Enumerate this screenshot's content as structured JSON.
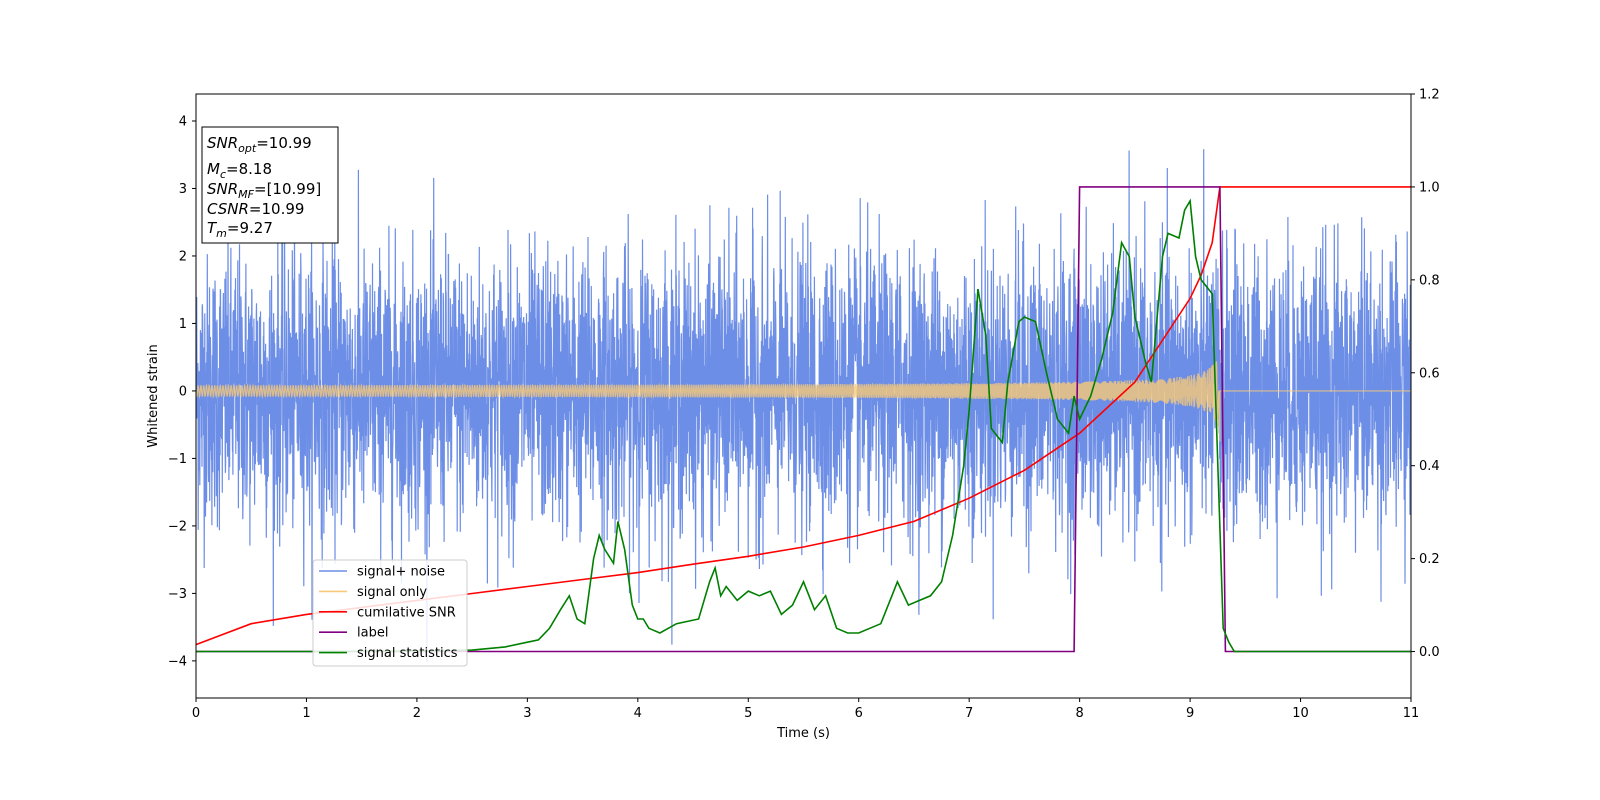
{
  "chart_data": {
    "type": "line",
    "title": "",
    "xlabel": "Time (s)",
    "ylabel": "Whitened strain",
    "xlim": [
      0,
      11
    ],
    "ylim_left": [
      -4.55,
      4.4
    ],
    "ylim_right": [
      -0.1,
      1.2
    ],
    "x_ticks": [
      0,
      1,
      2,
      3,
      4,
      5,
      6,
      7,
      8,
      9,
      10,
      11
    ],
    "y_ticks_left": [
      -4,
      -3,
      -2,
      -1,
      0,
      1,
      2,
      3,
      4
    ],
    "y_ticks_right": [
      "0.0",
      "0.2",
      "0.4",
      "0.6",
      "0.8",
      "1.0",
      "1.2"
    ],
    "grid": false,
    "legend": {
      "placement": "lower-left",
      "entries": [
        {
          "label": "signal+ noise",
          "color": "#6d8ee6"
        },
        {
          "label": "signal only",
          "color": "#f7c978"
        },
        {
          "label": "cumilative SNR",
          "color": "#ff0000"
        },
        {
          "label": "label",
          "color": "#800080"
        },
        {
          "label": "signal statistics",
          "color": "#008000"
        }
      ]
    },
    "annotation": {
      "placement": "top-left",
      "lines": [
        {
          "sym": "SNR",
          "sub": "opt",
          "value": "=10.99"
        },
        {
          "sym": "M",
          "sub": "c",
          "value": "=8.18"
        },
        {
          "sym": "SNR",
          "sub": "MF",
          "value": "=[10.99]"
        },
        {
          "sym": "CSNR",
          "sub": "",
          "value": "=10.99"
        },
        {
          "sym": "T",
          "sub": "m",
          "value": "=9.27"
        }
      ]
    },
    "signal_noise": {
      "axis": "left",
      "color": "#6d8ee6",
      "t_start": 0,
      "t_end": 11,
      "envelope_sigma": 1.0,
      "peak_max": 4.0,
      "peak_min": -4.15
    },
    "signal_only": {
      "axis": "left",
      "color": "#f7c978",
      "t_start": 0,
      "t_merge": 9.27,
      "amplitude_start": 0.05,
      "amplitude_end": 0.75
    },
    "cumulative_snr": {
      "axis": "right",
      "color": "#ff0000",
      "x": [
        0,
        0.5,
        1,
        1.5,
        2,
        2.5,
        3,
        3.5,
        4,
        4.5,
        5,
        5.5,
        6,
        6.5,
        7,
        7.5,
        8,
        8.5,
        9,
        9.1,
        9.2,
        9.27,
        11
      ],
      "y": [
        0.015,
        0.06,
        0.08,
        0.095,
        0.11,
        0.125,
        0.14,
        0.155,
        0.17,
        0.188,
        0.205,
        0.225,
        0.25,
        0.28,
        0.33,
        0.39,
        0.47,
        0.58,
        0.76,
        0.81,
        0.88,
        1.0,
        1.0
      ]
    },
    "label_series": {
      "axis": "right",
      "color": "#800080",
      "x": [
        0,
        7.95,
        8.0,
        9.27,
        9.32,
        11
      ],
      "y": [
        0,
        0,
        1,
        1,
        0,
        0
      ]
    },
    "signal_statistics": {
      "axis": "right",
      "color": "#008000",
      "x": [
        0,
        1,
        2,
        2.5,
        2.8,
        3.0,
        3.1,
        3.2,
        3.3,
        3.38,
        3.45,
        3.52,
        3.6,
        3.65,
        3.7,
        3.78,
        3.82,
        3.88,
        3.95,
        4.0,
        4.05,
        4.1,
        4.2,
        4.35,
        4.55,
        4.65,
        4.7,
        4.75,
        4.8,
        4.9,
        5.0,
        5.1,
        5.2,
        5.3,
        5.4,
        5.5,
        5.6,
        5.7,
        5.8,
        5.9,
        6.0,
        6.1,
        6.2,
        6.3,
        6.35,
        6.45,
        6.55,
        6.65,
        6.75,
        6.85,
        6.95,
        7.0,
        7.08,
        7.15,
        7.2,
        7.3,
        7.35,
        7.45,
        7.5,
        7.6,
        7.7,
        7.8,
        7.9,
        7.95,
        8.0,
        8.1,
        8.2,
        8.3,
        8.38,
        8.45,
        8.5,
        8.6,
        8.65,
        8.75,
        8.8,
        8.9,
        8.95,
        9.0,
        9.05,
        9.1,
        9.2,
        9.3,
        9.35,
        9.4,
        11
      ],
      "y": [
        0,
        0,
        0.001,
        0.003,
        0.01,
        0.02,
        0.025,
        0.05,
        0.09,
        0.12,
        0.07,
        0.06,
        0.2,
        0.25,
        0.22,
        0.19,
        0.28,
        0.22,
        0.1,
        0.07,
        0.07,
        0.05,
        0.04,
        0.06,
        0.07,
        0.15,
        0.18,
        0.12,
        0.14,
        0.11,
        0.13,
        0.12,
        0.13,
        0.08,
        0.1,
        0.15,
        0.09,
        0.12,
        0.05,
        0.04,
        0.04,
        0.05,
        0.06,
        0.12,
        0.15,
        0.1,
        0.11,
        0.12,
        0.15,
        0.25,
        0.4,
        0.52,
        0.78,
        0.68,
        0.48,
        0.45,
        0.58,
        0.71,
        0.72,
        0.71,
        0.6,
        0.5,
        0.47,
        0.55,
        0.5,
        0.55,
        0.63,
        0.73,
        0.88,
        0.85,
        0.72,
        0.62,
        0.58,
        0.85,
        0.9,
        0.89,
        0.95,
        0.97,
        0.85,
        0.8,
        0.77,
        0.05,
        0.02,
        0.0,
        0.0
      ]
    }
  }
}
